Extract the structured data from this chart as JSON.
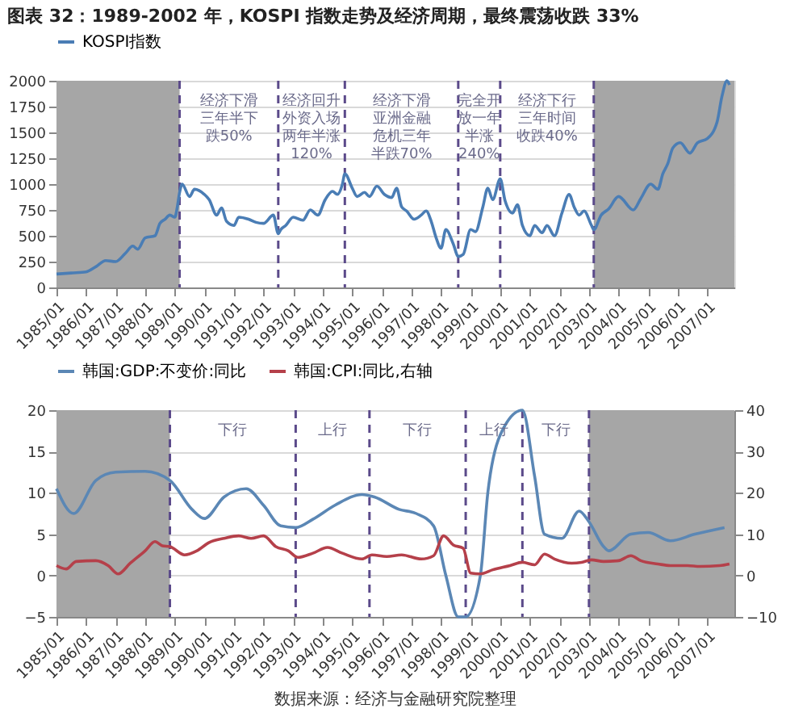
{
  "chart_data": [
    {
      "type": "line",
      "title": "图表 32：1989-2002 年，KOSPI 指数走势及经济周期，最终震荡收跌 33%",
      "legend": "top",
      "grid": "y",
      "xlim": [
        "1985-01",
        "2007-12"
      ],
      "ylim": [
        0,
        2000
      ],
      "yticks": [
        0,
        250,
        500,
        750,
        1000,
        1250,
        1500,
        1750,
        2000
      ],
      "xticks": [
        {
          "value": "1985-01",
          "label": "1985/01"
        },
        {
          "value": "1986-01",
          "label": "1986/01"
        },
        {
          "value": "1987-01",
          "label": "1987/01"
        },
        {
          "value": "1988-01",
          "label": "1988/01"
        },
        {
          "value": "1989-01",
          "label": "1989/01"
        },
        {
          "value": "1990-01",
          "label": "1990/01"
        },
        {
          "value": "1991-01",
          "label": "1991/01"
        },
        {
          "value": "1992-01",
          "label": "1992/01"
        },
        {
          "value": "1993-01",
          "label": "1993/01"
        },
        {
          "value": "1994-01",
          "label": "1994/01"
        },
        {
          "value": "1995-01",
          "label": "1995/01"
        },
        {
          "value": "1996-01",
          "label": "1996/01"
        },
        {
          "value": "1997-01",
          "label": "1997/01"
        },
        {
          "value": "1998-01",
          "label": "1998/01"
        },
        {
          "value": "1999-01",
          "label": "1999/01"
        },
        {
          "value": "2000-01",
          "label": "2000/01"
        },
        {
          "value": "2001-01",
          "label": "2001/01"
        },
        {
          "value": "2002-01",
          "label": "2002/01"
        },
        {
          "value": "2003-01",
          "label": "2003/01"
        },
        {
          "value": "2004-01",
          "label": "2004/01"
        },
        {
          "value": "2005-01",
          "label": "2005/01"
        },
        {
          "value": "2006-01",
          "label": "2006/01"
        },
        {
          "value": "2007-01",
          "label": "2007/01"
        }
      ],
      "bands": [
        {
          "axis": "x",
          "from": "1985-01",
          "to": "1989-03",
          "color": "#a6a6a6"
        },
        {
          "axis": "x",
          "from": "2003-03",
          "to": "2007-12",
          "color": "#a6a6a6"
        }
      ],
      "ref_lines": [
        {
          "axis": "x",
          "value": "1989-03",
          "color": "#5b4a8a",
          "line_style": "dashed"
        },
        {
          "axis": "x",
          "value": "1992-07",
          "color": "#5b4a8a",
          "line_style": "dashed"
        },
        {
          "axis": "x",
          "value": "1994-10",
          "color": "#5b4a8a",
          "line_style": "dashed"
        },
        {
          "axis": "x",
          "value": "1998-08",
          "color": "#5b4a8a",
          "line_style": "dashed"
        },
        {
          "axis": "x",
          "value": "2000-01",
          "color": "#5b4a8a",
          "line_style": "dashed"
        },
        {
          "axis": "x",
          "value": "2003-03",
          "color": "#5b4a8a",
          "line_style": "dashed"
        }
      ],
      "annotations": [
        "经济下滑三年半下跌50%",
        "经济回升外资入场两年半涨120%",
        "经济下滑亚洲金融危机三年半跌70%",
        "完全开放一年半涨240%",
        "经济下行三年时间收跌40%"
      ],
      "series": [
        {
          "name": "KOSPI指数",
          "color": "#4a7db5",
          "x": [
            "1985-01",
            "1985-07",
            "1986-01",
            "1986-05",
            "1986-09",
            "1987-01",
            "1987-05",
            "1987-08",
            "1987-10",
            "1988-01",
            "1988-05",
            "1988-07",
            "1988-09",
            "1988-11",
            "1989-01",
            "1989-02",
            "1989-03",
            "1989-04",
            "1989-07",
            "1989-09",
            "1990-01",
            "1990-03",
            "1990-06",
            "1990-08",
            "1990-10",
            "1991-01",
            "1991-03",
            "1991-07",
            "1991-10",
            "1992-01",
            "1992-05",
            "1992-07",
            "1992-08",
            "1992-10",
            "1993-01",
            "1993-05",
            "1993-08",
            "1993-11",
            "1994-02",
            "1994-05",
            "1994-07",
            "1994-09",
            "1994-10",
            "1995-01",
            "1995-03",
            "1995-06",
            "1995-08",
            "1995-11",
            "1996-02",
            "1996-05",
            "1996-07",
            "1996-09",
            "1996-11",
            "1997-02",
            "1997-05",
            "1997-07",
            "1997-09",
            "1997-11",
            "1998-01",
            "1998-03",
            "1998-06",
            "1998-08",
            "1998-10",
            "1999-01",
            "1999-03",
            "1999-06",
            "1999-08",
            "1999-10",
            "2000-01",
            "2000-03",
            "2000-06",
            "2000-08",
            "2000-10",
            "2001-01",
            "2001-03",
            "2001-06",
            "2001-08",
            "2001-11",
            "2002-02",
            "2002-05",
            "2002-07",
            "2002-09",
            "2002-11",
            "2003-02",
            "2003-03",
            "2003-06",
            "2003-09",
            "2004-01",
            "2004-07",
            "2004-10",
            "2005-02",
            "2005-05",
            "2005-07",
            "2005-09",
            "2005-11",
            "2006-02",
            "2006-06",
            "2006-09",
            "2007-01",
            "2007-05",
            "2007-07",
            "2007-09",
            "2007-10"
          ],
          "values": [
            130,
            140,
            150,
            200,
            260,
            250,
            330,
            400,
            370,
            480,
            500,
            620,
            660,
            700,
            680,
            780,
            920,
            1000,
            880,
            950,
            900,
            850,
            700,
            770,
            640,
            600,
            680,
            660,
            630,
            620,
            700,
            520,
            560,
            600,
            680,
            650,
            750,
            700,
            850,
            930,
            900,
            1000,
            1100,
            960,
            880,
            920,
            880,
            980,
            900,
            870,
            960,
            780,
            740,
            660,
            700,
            740,
            640,
            480,
            380,
            560,
            420,
            300,
            320,
            560,
            540,
            780,
            960,
            850,
            1050,
            840,
            720,
            800,
            600,
            500,
            600,
            530,
            600,
            500,
            720,
            900,
            780,
            700,
            740,
            600,
            560,
            700,
            760,
            880,
            750,
            860,
            1000,
            950,
            1100,
            1200,
            1350,
            1400,
            1300,
            1400,
            1440,
            1600,
            1850,
            2000,
            1960
          ]
        }
      ]
    },
    {
      "type": "line",
      "legend": "top",
      "grid": "y",
      "xlim": [
        "1985-01",
        "2007-12"
      ],
      "ylim": [
        -5,
        20
      ],
      "yticks": [
        -5,
        0,
        5,
        10,
        15,
        20
      ],
      "y2lim": [
        -10,
        40
      ],
      "y2ticks": [
        -10,
        0,
        10,
        20,
        30,
        40
      ],
      "xticks": [
        {
          "value": "1985-01",
          "label": "1985/01"
        },
        {
          "value": "1986-01",
          "label": "1986/01"
        },
        {
          "value": "1987-01",
          "label": "1987/01"
        },
        {
          "value": "1988-01",
          "label": "1988/01"
        },
        {
          "value": "1989-01",
          "label": "1989/01"
        },
        {
          "value": "1990-01",
          "label": "1990/01"
        },
        {
          "value": "1991-01",
          "label": "1991/01"
        },
        {
          "value": "1992-01",
          "label": "1992/01"
        },
        {
          "value": "1993-01",
          "label": "1993/01"
        },
        {
          "value": "1994-01",
          "label": "1994/01"
        },
        {
          "value": "1995-01",
          "label": "1995/01"
        },
        {
          "value": "1996-01",
          "label": "1996/01"
        },
        {
          "value": "1997-01",
          "label": "1997/01"
        },
        {
          "value": "1998-01",
          "label": "1998/01"
        },
        {
          "value": "1999-01",
          "label": "1999/01"
        },
        {
          "value": "2000-01",
          "label": "2000/01"
        },
        {
          "value": "2001-01",
          "label": "2001/01"
        },
        {
          "value": "2002-01",
          "label": "2002/01"
        },
        {
          "value": "2003-01",
          "label": "2003/01"
        },
        {
          "value": "2004-01",
          "label": "2004/01"
        },
        {
          "value": "2005-01",
          "label": "2005/01"
        },
        {
          "value": "2006-01",
          "label": "2006/01"
        },
        {
          "value": "2007-01",
          "label": "2007/01"
        }
      ],
      "bands": [
        {
          "axis": "x",
          "from": "1985-01",
          "to": "1988-11",
          "color": "#a6a6a6"
        },
        {
          "axis": "x",
          "from": "2003-01",
          "to": "2007-12",
          "color": "#a6a6a6"
        }
      ],
      "ref_lines": [
        {
          "axis": "x",
          "value": "1988-11",
          "color": "#5b4a8a",
          "line_style": "dashed"
        },
        {
          "axis": "x",
          "value": "1993-02",
          "color": "#5b4a8a",
          "line_style": "dashed"
        },
        {
          "axis": "x",
          "value": "1995-08",
          "color": "#5b4a8a",
          "line_style": "dashed"
        },
        {
          "axis": "x",
          "value": "1998-11",
          "color": "#5b4a8a",
          "line_style": "dashed"
        },
        {
          "axis": "x",
          "value": "2000-10",
          "color": "#5b4a8a",
          "line_style": "dashed"
        },
        {
          "axis": "x",
          "value": "2003-01",
          "color": "#5b4a8a",
          "line_style": "dashed"
        }
      ],
      "annotations": [
        "下行",
        "上行",
        "下行",
        "上行",
        "下行",
        "数据来源：经济与金融研究院整理"
      ],
      "series": [
        {
          "name": "韩国:GDP:不变价:同比",
          "color": "#5b87b5",
          "x": [
            "1985-01",
            "1985-08",
            "1986-05",
            "1987-01",
            "1988-01",
            "1988-11",
            "1989-08",
            "1990-01",
            "1990-09",
            "1991-06",
            "1992-01",
            "1992-08",
            "1993-02",
            "1993-09",
            "1994-06",
            "1995-05",
            "1995-10",
            "1996-08",
            "1997-03",
            "1997-10",
            "1998-03",
            "1998-08",
            "1998-11",
            "1999-05",
            "1999-08",
            "2000-01",
            "2000-10",
            "2001-03",
            "2001-07",
            "2002-02",
            "2002-09",
            "2003-01",
            "2003-07",
            "2003-09",
            "2004-06",
            "2005-01",
            "2005-10",
            "2006-08",
            "2007-08"
          ],
          "values": [
            10.5,
            7.5,
            11.5,
            12.5,
            12.6,
            11.5,
            8,
            6.9,
            9.5,
            10.5,
            8.5,
            6,
            5.8,
            6.8,
            8.5,
            9.8,
            9.5,
            8,
            7.5,
            6,
            0,
            -5,
            -5,
            0,
            10,
            17,
            20,
            12,
            5,
            4.5,
            7.8,
            6.5,
            3.5,
            3,
            5,
            5.2,
            4.2,
            5,
            5.8
          ]
        },
        {
          "name": "韩国:CPI:同比,右轴",
          "color": "#b5404a",
          "axis": "y2",
          "x": [
            "1985-01",
            "1985-05",
            "1985-09",
            "1986-05",
            "1986-10",
            "1987-02",
            "1987-07",
            "1988-01",
            "1988-05",
            "1988-08",
            "1988-11",
            "1989-05",
            "1989-10",
            "1990-03",
            "1990-09",
            "1991-03",
            "1991-08",
            "1992-01",
            "1992-06",
            "1992-11",
            "1993-03",
            "1993-09",
            "1994-03",
            "1994-09",
            "1995-05",
            "1995-09",
            "1996-03",
            "1996-09",
            "1997-05",
            "1997-10",
            "1998-02",
            "1998-06",
            "1998-10",
            "1999-01",
            "1999-05",
            "1999-10",
            "2000-05",
            "2000-10",
            "2001-03",
            "2001-07",
            "2001-11",
            "2002-06",
            "2002-10",
            "2003-02",
            "2003-07",
            "2004-01",
            "2004-06",
            "2004-10",
            "2005-05",
            "2005-10",
            "2006-05",
            "2006-10",
            "2007-06",
            "2007-10"
          ],
          "values": [
            2.4,
            1.6,
            3.4,
            3.6,
            2.4,
            0.4,
            3,
            6,
            8.2,
            7.2,
            7,
            5,
            6,
            8,
            9,
            9.6,
            9,
            9.6,
            7,
            6,
            4.4,
            5.4,
            6.8,
            5.4,
            4,
            5,
            4.6,
            5,
            4,
            4.8,
            9.6,
            7.4,
            6.6,
            0.6,
            0.4,
            1.4,
            2.4,
            3.2,
            2.6,
            5.2,
            4,
            3,
            3.2,
            3.8,
            3.4,
            3.6,
            4.8,
            3.6,
            2.8,
            2.4,
            2.4,
            2.2,
            2.4,
            2.8
          ]
        }
      ]
    }
  ]
}
